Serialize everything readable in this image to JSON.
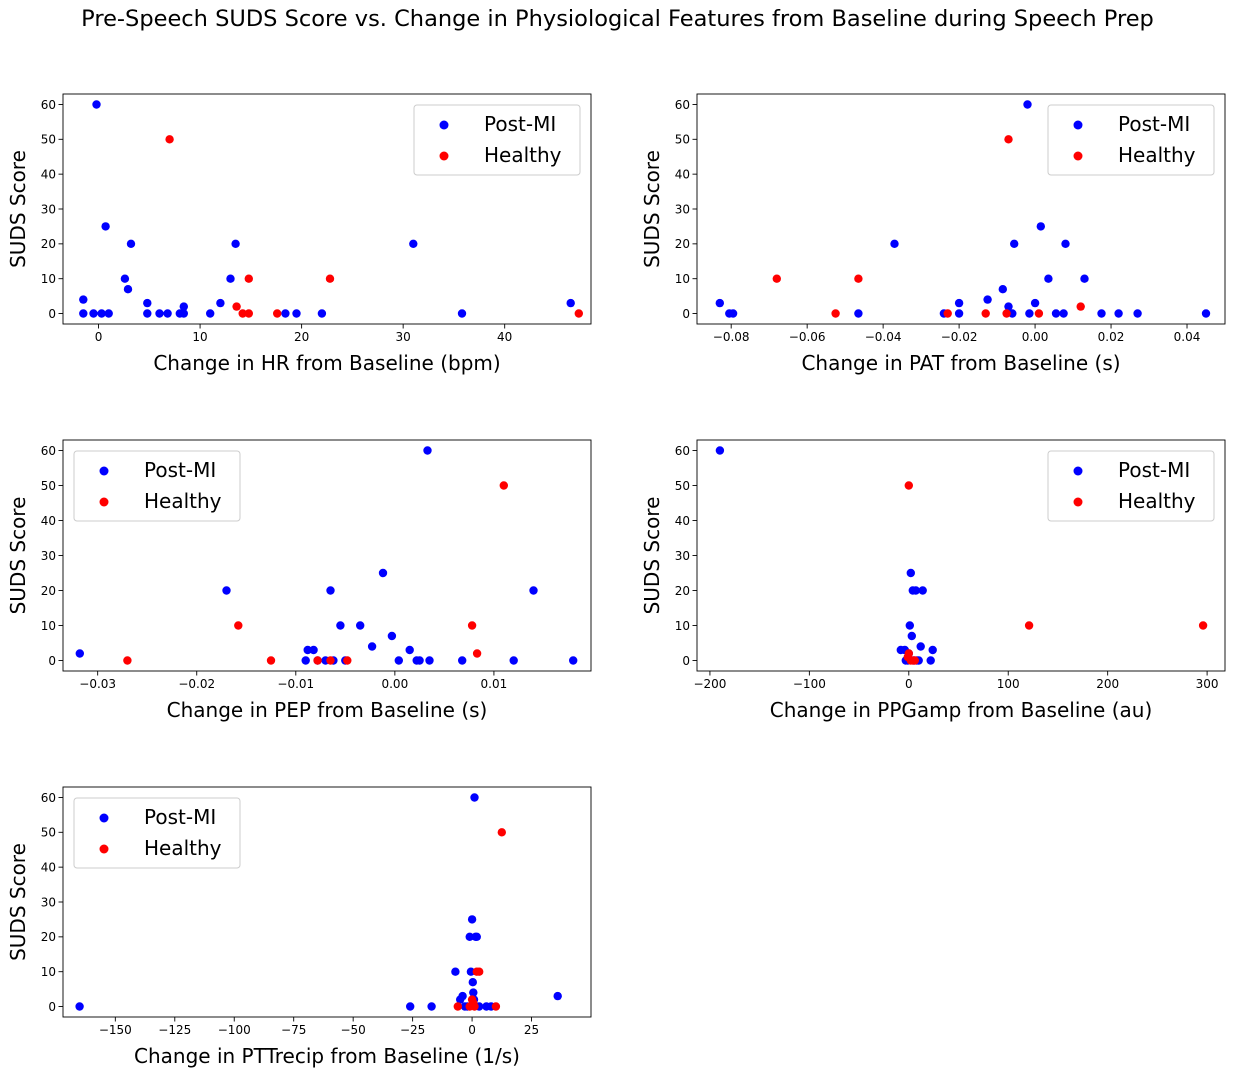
{
  "figure": {
    "title": "Pre-Speech SUDS Score vs. Change in Physiological Features from Baseline during Speech Prep"
  },
  "colors": {
    "post_mi": "#0000ff",
    "healthy": "#ff0000",
    "legend_border": "#cccccc"
  },
  "chart_data": [
    {
      "type": "scatter",
      "xlabel": "Change in HR from Baseline (bpm)",
      "ylabel": "SUDS Score",
      "xlim": [
        -3.5,
        48.5
      ],
      "ylim": [
        -3,
        63
      ],
      "xticks": [
        0,
        10,
        20,
        30,
        40
      ],
      "xtick_labels": [
        "0",
        "10",
        "20",
        "30",
        "40"
      ],
      "yticks": [
        0,
        10,
        20,
        30,
        40,
        50,
        60
      ],
      "ytick_labels": [
        "0",
        "10",
        "20",
        "30",
        "40",
        "50",
        "60"
      ],
      "legend": {
        "location": "upper right",
        "entries": [
          "Post-MI",
          "Healthy"
        ]
      },
      "series": [
        {
          "name": "Post-MI",
          "color": "#0000ff",
          "points": [
            [
              -1.5,
              4
            ],
            [
              -1.5,
              0
            ],
            [
              -0.5,
              0
            ],
            [
              0.3,
              0
            ],
            [
              1,
              0
            ],
            [
              -0.2,
              60
            ],
            [
              0.7,
              25
            ],
            [
              3.2,
              20
            ],
            [
              2.6,
              10
            ],
            [
              2.9,
              7
            ],
            [
              4.8,
              3
            ],
            [
              4.8,
              0
            ],
            [
              6,
              0
            ],
            [
              6.8,
              0
            ],
            [
              8,
              0
            ],
            [
              8.4,
              2
            ],
            [
              8.4,
              0
            ],
            [
              11,
              0
            ],
            [
              12,
              3
            ],
            [
              13,
              10
            ],
            [
              13.5,
              20
            ],
            [
              18.4,
              0
            ],
            [
              19.5,
              0
            ],
            [
              22,
              0
            ],
            [
              31,
              20
            ],
            [
              35.8,
              0
            ],
            [
              46.5,
              3
            ]
          ]
        },
        {
          "name": "Healthy",
          "color": "#ff0000",
          "points": [
            [
              7,
              50
            ],
            [
              13.6,
              2
            ],
            [
              14.2,
              0
            ],
            [
              14.8,
              0
            ],
            [
              14.8,
              10
            ],
            [
              17.6,
              0
            ],
            [
              22.8,
              10
            ],
            [
              47.3,
              0
            ]
          ]
        }
      ]
    },
    {
      "type": "scatter",
      "xlabel": "Change in PAT from Baseline (s)",
      "ylabel": "SUDS Score",
      "xlim": [
        -0.089,
        0.05
      ],
      "ylim": [
        -3,
        63
      ],
      "xticks": [
        -0.08,
        -0.06,
        -0.04,
        -0.02,
        0.0,
        0.02,
        0.04
      ],
      "xtick_labels": [
        "−0.08",
        "−0.06",
        "−0.04",
        "−0.02",
        "0.00",
        "0.02",
        "0.04"
      ],
      "yticks": [
        0,
        10,
        20,
        30,
        40,
        50,
        60
      ],
      "ytick_labels": [
        "0",
        "10",
        "20",
        "30",
        "40",
        "50",
        "60"
      ],
      "legend": {
        "location": "upper right",
        "entries": [
          "Post-MI",
          "Healthy"
        ]
      },
      "series": [
        {
          "name": "Post-MI",
          "color": "#0000ff",
          "points": [
            [
              -0.083,
              3
            ],
            [
              -0.0805,
              0
            ],
            [
              -0.0795,
              0
            ],
            [
              -0.0465,
              0
            ],
            [
              -0.037,
              20
            ],
            [
              -0.024,
              0
            ],
            [
              -0.02,
              3
            ],
            [
              -0.02,
              0
            ],
            [
              -0.0125,
              4
            ],
            [
              -0.0085,
              7
            ],
            [
              -0.007,
              2
            ],
            [
              -0.006,
              0
            ],
            [
              -0.0055,
              20
            ],
            [
              -0.002,
              60
            ],
            [
              -0.0015,
              0
            ],
            [
              0.0,
              3
            ],
            [
              0.0015,
              25
            ],
            [
              0.0035,
              10
            ],
            [
              0.0055,
              0
            ],
            [
              0.0075,
              0
            ],
            [
              0.008,
              20
            ],
            [
              0.013,
              10
            ],
            [
              0.0175,
              0
            ],
            [
              0.022,
              0
            ],
            [
              0.027,
              0
            ],
            [
              0.045,
              0
            ]
          ]
        },
        {
          "name": "Healthy",
          "color": "#ff0000",
          "points": [
            [
              -0.068,
              10
            ],
            [
              -0.0525,
              0
            ],
            [
              -0.0465,
              10
            ],
            [
              -0.023,
              0
            ],
            [
              -0.013,
              0
            ],
            [
              -0.007,
              50
            ],
            [
              -0.0075,
              0
            ],
            [
              0.001,
              0
            ],
            [
              0.012,
              2
            ]
          ]
        }
      ]
    },
    {
      "type": "scatter",
      "xlabel": "Change in PEP from Baseline (s)",
      "ylabel": "SUDS Score",
      "xlim": [
        -0.0335,
        0.0198
      ],
      "ylim": [
        -3,
        63
      ],
      "xticks": [
        -0.03,
        -0.02,
        -0.01,
        0.0,
        0.01,
        0.02
      ],
      "xtick_labels": [
        "−0.03",
        "−0.02",
        "−0.01",
        "0.00",
        "0.01",
        "0.02"
      ],
      "yticks": [
        0,
        10,
        20,
        30,
        40,
        50,
        60
      ],
      "ytick_labels": [
        "0",
        "10",
        "20",
        "30",
        "40",
        "50",
        "60"
      ],
      "legend": {
        "location": "upper left",
        "entries": [
          "Post-MI",
          "Healthy"
        ]
      },
      "series": [
        {
          "name": "Post-MI",
          "color": "#0000ff",
          "points": [
            [
              -0.0318,
              2
            ],
            [
              -0.017,
              20
            ],
            [
              -0.009,
              0
            ],
            [
              -0.0088,
              3
            ],
            [
              -0.0082,
              3
            ],
            [
              -0.0078,
              0
            ],
            [
              -0.007,
              0
            ],
            [
              -0.0065,
              20
            ],
            [
              -0.0062,
              0
            ],
            [
              -0.0055,
              10
            ],
            [
              -0.005,
              0
            ],
            [
              -0.0035,
              10
            ],
            [
              -0.0023,
              4
            ],
            [
              -0.0012,
              25
            ],
            [
              -0.0003,
              7
            ],
            [
              0.0004,
              0
            ],
            [
              0.0015,
              3
            ],
            [
              0.0022,
              0
            ],
            [
              0.0025,
              0
            ],
            [
              0.0033,
              60
            ],
            [
              0.0035,
              0
            ],
            [
              0.0068,
              0
            ],
            [
              0.012,
              0
            ],
            [
              0.014,
              20
            ],
            [
              0.018,
              0
            ]
          ]
        },
        {
          "name": "Healthy",
          "color": "#ff0000",
          "points": [
            [
              -0.027,
              0
            ],
            [
              -0.0158,
              10
            ],
            [
              -0.0125,
              0
            ],
            [
              -0.0078,
              0
            ],
            [
              -0.0065,
              0
            ],
            [
              -0.0048,
              0
            ],
            [
              0.0078,
              10
            ],
            [
              0.0083,
              2
            ],
            [
              0.011,
              50
            ]
          ]
        }
      ]
    },
    {
      "type": "scatter",
      "xlabel": "Change in PPGamp from Baseline (au)",
      "ylabel": "SUDS Score",
      "xlim": [
        -213,
        318
      ],
      "ylim": [
        -3,
        63
      ],
      "xticks": [
        -200,
        -100,
        0,
        100,
        200,
        300
      ],
      "xtick_labels": [
        "−200",
        "−100",
        "0",
        "100",
        "200",
        "300"
      ],
      "yticks": [
        0,
        10,
        20,
        30,
        40,
        50,
        60
      ],
      "ytick_labels": [
        "0",
        "10",
        "20",
        "30",
        "40",
        "50",
        "60"
      ],
      "legend": {
        "location": "upper right",
        "entries": [
          "Post-MI",
          "Healthy"
        ]
      },
      "series": [
        {
          "name": "Post-MI",
          "color": "#0000ff",
          "points": [
            [
              -190,
              60
            ],
            [
              -8,
              3
            ],
            [
              -4,
              3
            ],
            [
              -3,
              0
            ],
            [
              -1,
              0
            ],
            [
              0,
              2
            ],
            [
              1,
              10
            ],
            [
              2,
              25
            ],
            [
              3,
              7
            ],
            [
              4,
              20
            ],
            [
              5,
              0
            ],
            [
              7,
              20
            ],
            [
              8,
              0
            ],
            [
              10,
              0
            ],
            [
              12,
              4
            ],
            [
              14,
              20
            ],
            [
              22,
              0
            ],
            [
              24,
              3
            ]
          ]
        },
        {
          "name": "Healthy",
          "color": "#ff0000",
          "points": [
            [
              0,
              50
            ],
            [
              0,
              2
            ],
            [
              -1,
              1
            ],
            [
              2,
              0
            ],
            [
              4,
              0
            ],
            [
              6,
              0
            ],
            [
              121,
              10
            ],
            [
              296,
              10
            ]
          ]
        }
      ]
    },
    {
      "type": "scatter",
      "xlabel": "Change in PTTrecip from Baseline (1/s)",
      "ylabel": "SUDS Score",
      "xlim": [
        -172,
        50
      ],
      "ylim": [
        -3,
        63
      ],
      "xticks": [
        -175,
        -150,
        -125,
        -100,
        -75,
        -50,
        -25,
        0,
        25
      ],
      "xtick_labels": [
        "−175",
        "−150",
        "−125",
        "−100",
        "−75",
        "−50",
        "−25",
        "0",
        "25"
      ],
      "yticks": [
        0,
        10,
        20,
        30,
        40,
        50,
        60
      ],
      "ytick_labels": [
        "0",
        "10",
        "20",
        "30",
        "40",
        "50",
        "60"
      ],
      "legend": {
        "location": "upper left",
        "entries": [
          "Post-MI",
          "Healthy"
        ]
      },
      "series": [
        {
          "name": "Post-MI",
          "color": "#0000ff",
          "points": [
            [
              -165,
              0
            ],
            [
              -26,
              0
            ],
            [
              -17,
              0
            ],
            [
              -7,
              10
            ],
            [
              -5,
              2
            ],
            [
              -4,
              3
            ],
            [
              -3,
              0
            ],
            [
              -2,
              0
            ],
            [
              -1,
              20
            ],
            [
              -0.5,
              10
            ],
            [
              0,
              25
            ],
            [
              0.3,
              7
            ],
            [
              0.5,
              4
            ],
            [
              0.8,
              2
            ],
            [
              1,
              60
            ],
            [
              1.5,
              20
            ],
            [
              2,
              20
            ],
            [
              3,
              0
            ],
            [
              6,
              0
            ],
            [
              8,
              0
            ],
            [
              36,
              3
            ]
          ]
        },
        {
          "name": "Healthy",
          "color": "#ff0000",
          "points": [
            [
              -6,
              0
            ],
            [
              -1,
              0
            ],
            [
              0,
              2
            ],
            [
              0.5,
              1
            ],
            [
              1,
              0
            ],
            [
              2,
              10
            ],
            [
              3,
              10
            ],
            [
              10,
              0
            ],
            [
              12.5,
              50
            ]
          ]
        }
      ]
    }
  ]
}
